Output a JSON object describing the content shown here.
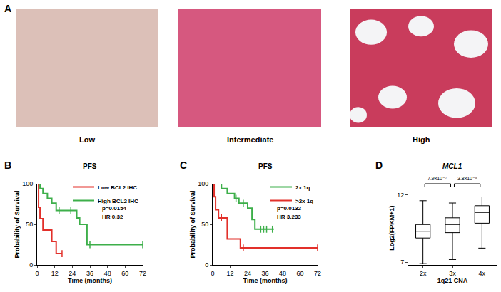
{
  "images": {
    "panel": "A",
    "labels": [
      "Low",
      "Intermediate",
      "High"
    ]
  },
  "chart_data": [
    {
      "panel": "B",
      "type": "line",
      "line_style": "step",
      "title": "PFS",
      "x_label": "Time (months)",
      "y_label": "Probability of Survival",
      "xlim": [
        0,
        72
      ],
      "xticks": [
        0,
        12,
        24,
        36,
        48,
        60,
        72
      ],
      "ylim": [
        0,
        100
      ],
      "yticks": [
        0,
        50,
        100
      ],
      "grid": false,
      "legend": "top right",
      "series": [
        {
          "name": "Low BCL2 IHC",
          "color": "#e2302a",
          "x": [
            0,
            1,
            2,
            4,
            10,
            13,
            17
          ],
          "values": [
            100,
            71,
            57,
            43,
            29,
            14,
            14
          ],
          "censored": {
            "x": [
              17
            ],
            "values": [
              14
            ]
          }
        },
        {
          "name": "High BCL2 IHC",
          "color": "#3daf4a",
          "x": [
            0,
            2,
            4,
            7,
            10,
            13,
            27,
            29,
            34,
            72
          ],
          "values": [
            100,
            94,
            88,
            82,
            76,
            67,
            58,
            50,
            25,
            25
          ],
          "censored": {
            "x": [
              15,
              23,
              36,
              72
            ],
            "values": [
              67,
              67,
              25,
              25
            ]
          }
        }
      ],
      "annotations": [
        "p=0.0154",
        "HR 0.32"
      ]
    },
    {
      "panel": "C",
      "type": "line",
      "line_style": "step",
      "title": "PFS",
      "x_label": "Time (months)",
      "y_label": "Probability of Survival",
      "xlim": [
        0,
        72
      ],
      "xticks": [
        0,
        12,
        24,
        36,
        48,
        60,
        72
      ],
      "ylim": [
        0,
        100
      ],
      "yticks": [
        0,
        50,
        100
      ],
      "grid": false,
      "legend": "top right",
      "series": [
        {
          "name": "2x 1q",
          "color": "#3daf4a",
          "x": [
            0,
            6,
            10,
            15,
            18,
            24,
            27,
            29,
            42
          ],
          "values": [
            100,
            94,
            88,
            82,
            76,
            70,
            56,
            44,
            44
          ],
          "censored": {
            "x": [
              16,
              21,
              33,
              35,
              37,
              41
            ],
            "values": [
              82,
              76,
              44,
              44,
              44,
              44
            ]
          }
        },
        {
          "name": ">2x 1q",
          "color": "#e2302a",
          "x": [
            0,
            1,
            2,
            4,
            10,
            19,
            72
          ],
          "values": [
            100,
            84,
            68,
            58,
            32,
            21,
            21
          ],
          "censored": {
            "x": [
              6,
              21,
              72
            ],
            "values": [
              58,
              21,
              21
            ]
          }
        }
      ],
      "annotations": [
        "p=0.0132",
        "HR 3.233"
      ]
    },
    {
      "panel": "D",
      "type": "box",
      "title": "MCL1",
      "x_label": "1q21 CNA",
      "y_label": "Log2(FPKM+1)",
      "categories": [
        "2x",
        "3x",
        "4x"
      ],
      "ylim": [
        6.8,
        12.3
      ],
      "yticks": [
        7,
        12
      ],
      "grid": false,
      "min": [
        6.9,
        7.2,
        8.05
      ],
      "q1": [
        8.8,
        9.2,
        9.9
      ],
      "median": [
        9.3,
        9.8,
        10.7
      ],
      "q3": [
        9.8,
        10.3,
        11.2
      ],
      "max": [
        11.57,
        11.4,
        11.85
      ],
      "comparisons": [
        {
          "groups": [
            "2x",
            "3x"
          ],
          "p": "7.9x10⁻⁷"
        },
        {
          "groups": [
            "3x",
            "4x"
          ],
          "p": "3.8x10⁻⁸"
        }
      ]
    }
  ]
}
